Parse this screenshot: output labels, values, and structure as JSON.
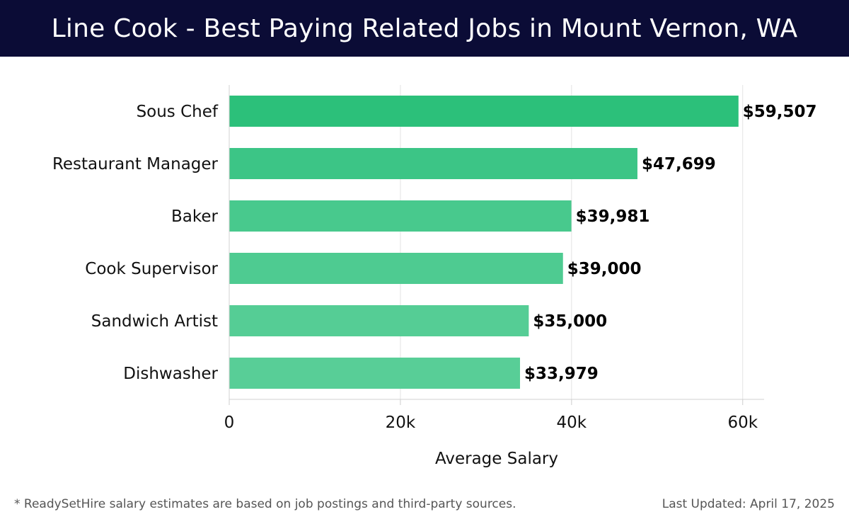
{
  "header": {
    "title": "Line Cook - Best Paying Related Jobs in Mount Vernon, WA"
  },
  "chart_data": {
    "type": "bar",
    "orientation": "horizontal",
    "categories": [
      "Sous Chef",
      "Restaurant Manager",
      "Baker",
      "Cook Supervisor",
      "Sandwich Artist",
      "Dishwasher"
    ],
    "values": [
      59507,
      47699,
      39981,
      39000,
      35000,
      33979
    ],
    "value_labels": [
      "$59,507",
      "$47,699",
      "$39,981",
      "$39,000",
      "$35,000",
      "$33,979"
    ],
    "bar_colors": [
      "#2cc07a",
      "#3cc586",
      "#48c98d",
      "#4ecb91",
      "#55cd95",
      "#58ce97"
    ],
    "xlabel": "Average Salary",
    "xlim": [
      0,
      62500
    ],
    "x_ticks": [
      0,
      20000,
      40000,
      60000
    ],
    "x_tick_labels": [
      "0",
      "20k",
      "40k",
      "60k"
    ],
    "grid": "vertical"
  },
  "footer": {
    "note": "* ReadySetHire salary estimates are based on job postings and third-party sources.",
    "updated": "Last Updated: April 17, 2025"
  }
}
